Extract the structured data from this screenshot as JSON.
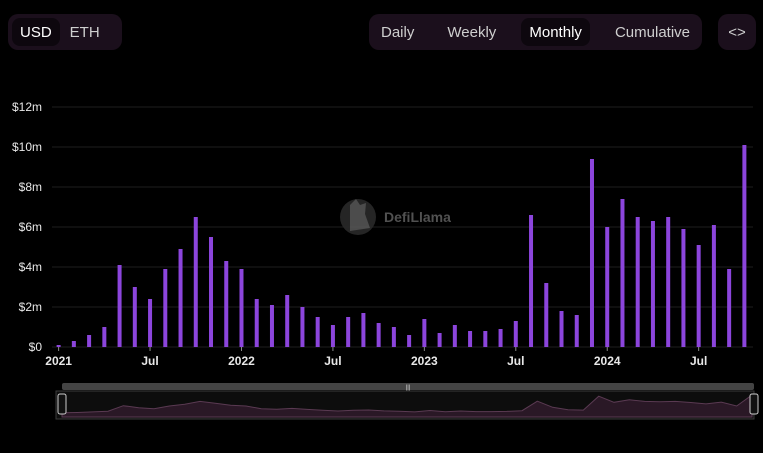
{
  "currency": {
    "options": [
      "USD",
      "ETH"
    ],
    "selected": "USD"
  },
  "period": {
    "options": [
      "Daily",
      "Weekly",
      "Monthly",
      "Cumulative"
    ],
    "selected": "Monthly"
  },
  "embed_label": "<>",
  "watermark": "DefiLlama",
  "colors": {
    "bar": "#8c45dc",
    "grid": "#1e1e1e",
    "brush": "#3a2336",
    "slider": "#444444"
  },
  "chart_data": {
    "type": "bar",
    "x_start": "2021-01",
    "values": [
      0.1,
      0.3,
      0.6,
      1.0,
      4.1,
      3.0,
      2.4,
      3.9,
      4.9,
      6.5,
      5.5,
      4.3,
      3.9,
      2.4,
      2.1,
      2.6,
      2.0,
      1.5,
      1.1,
      1.5,
      1.7,
      1.2,
      1.0,
      0.6,
      1.4,
      0.7,
      1.1,
      0.8,
      0.8,
      0.9,
      1.3,
      6.6,
      3.2,
      1.8,
      1.6,
      9.4,
      6.0,
      7.4,
      6.5,
      6.3,
      6.5,
      5.9,
      5.1,
      6.1,
      3.9,
      10.1
    ],
    "ylim": [
      0,
      12
    ],
    "y_ticks": [
      0,
      2,
      4,
      6,
      8,
      10,
      12
    ],
    "y_tick_labels": [
      "$0",
      "$2m",
      "$4m",
      "$6m",
      "$8m",
      "$10m",
      "$12m"
    ],
    "x_tick_labels": [
      {
        "label": "2021",
        "index": 0
      },
      {
        "label": "Jul",
        "index": 6
      },
      {
        "label": "2022",
        "index": 12
      },
      {
        "label": "Jul",
        "index": 18
      },
      {
        "label": "2023",
        "index": 24
      },
      {
        "label": "Jul",
        "index": 30
      },
      {
        "label": "2024",
        "index": 36
      },
      {
        "label": "Jul",
        "index": 42
      }
    ],
    "grid": true
  }
}
